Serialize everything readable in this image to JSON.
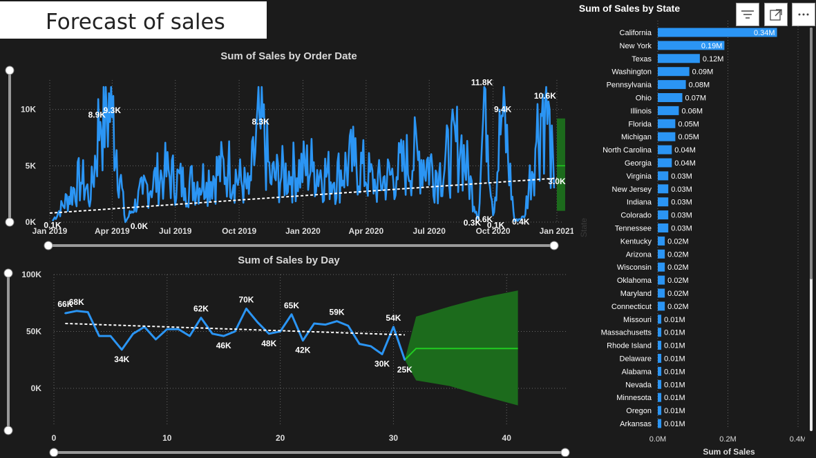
{
  "page": {
    "title": "Forecast of sales"
  },
  "icons": {
    "filter": "filter-icon",
    "focus": "focus-mode-icon",
    "more": "more-options-icon"
  },
  "colors": {
    "series": "#2b95f4",
    "forecast_band": "#1c6b1c",
    "forecast_line": "#22cc22",
    "trend": "#ffffff"
  },
  "chart_data": [
    {
      "type": "line",
      "title": "Sum of Sales by Order Date",
      "xlabel": "",
      "ylabel": "",
      "x_ticks": [
        "Jan 2019",
        "Apr 2019",
        "Jul 2019",
        "Oct 2019",
        "Jan 2020",
        "Apr 2020",
        "Jul 2020",
        "Oct 2020",
        "Jan 2021"
      ],
      "y_ticks": [
        "0K",
        "5K",
        "10K"
      ],
      "ylim": [
        0,
        12000
      ],
      "x_range": [
        "2019-01-01",
        "2021-01-10"
      ],
      "series": [
        {
          "x": [
            "2019-01-05",
            "2019-02-15",
            "2019-03-01",
            "2019-03-15",
            "2019-04-01",
            "2019-04-20",
            "2019-05-15",
            "2019-06-15",
            "2019-07-15",
            "2019-08-15",
            "2019-09-15",
            "2019-10-15",
            "2019-11-01",
            "2019-11-15",
            "2019-12-15",
            "2020-01-15",
            "2020-02-15",
            "2020-03-15",
            "2020-04-15",
            "2020-05-15",
            "2020-06-15",
            "2020-07-15",
            "2020-08-15",
            "2020-09-10",
            "2020-09-20",
            "2020-10-01",
            "2020-10-15",
            "2020-11-01",
            "2020-11-15",
            "2020-12-01",
            "2020-12-15",
            "2020-12-28"
          ],
          "values": [
            100,
            3500,
            2000,
            8900,
            9300,
            0,
            2500,
            4000,
            3000,
            3500,
            4500,
            2500,
            8300,
            3500,
            4000,
            4500,
            3500,
            5000,
            3000,
            4000,
            5500,
            4000,
            6500,
            300,
            11800,
            600,
            9400,
            100,
            400,
            6500,
            10600,
            3000
          ]
        }
      ],
      "trend": {
        "start": 800,
        "end": 3900
      },
      "forecast": {
        "low": 1000,
        "high": 9200
      },
      "data_labels": [
        {
          "x": "2019-01-05",
          "y": 100,
          "text": "0.1K"
        },
        {
          "x": "2019-03-10",
          "y": 8900,
          "text": "8.9K"
        },
        {
          "x": "2019-04-01",
          "y": 9300,
          "text": "9.3K"
        },
        {
          "x": "2019-05-10",
          "y": 0,
          "text": "0.0K"
        },
        {
          "x": "2019-11-01",
          "y": 8300,
          "text": "8.3K"
        },
        {
          "x": "2020-09-01",
          "y": 300,
          "text": "0.3K"
        },
        {
          "x": "2020-09-15",
          "y": 11800,
          "text": "11.8K"
        },
        {
          "x": "2020-09-18",
          "y": 600,
          "text": "0.6K"
        },
        {
          "x": "2020-10-05",
          "y": 100,
          "text": "0.1K"
        },
        {
          "x": "2020-10-15",
          "y": 9400,
          "text": "9.4K"
        },
        {
          "x": "2020-11-10",
          "y": 400,
          "text": "0.4K"
        },
        {
          "x": "2020-12-15",
          "y": 10600,
          "text": "10.6K"
        },
        {
          "x": "2021-01-01",
          "y": 3000,
          "text": "3.0K"
        }
      ]
    },
    {
      "type": "line",
      "title": "Sum of Sales by Day",
      "xlabel": "",
      "ylabel": "",
      "x_ticks": [
        "0",
        "10",
        "20",
        "30",
        "40"
      ],
      "y_ticks": [
        "0K",
        "50K",
        "100K"
      ],
      "xlim": [
        0,
        42
      ],
      "ylim": [
        -20000,
        100000
      ],
      "series": [
        {
          "x": [
            1,
            2,
            3,
            4,
            5,
            6,
            7,
            8,
            9,
            10,
            11,
            12,
            13,
            14,
            15,
            16,
            17,
            18,
            19,
            20,
            21,
            22,
            23,
            24,
            25,
            26,
            27,
            28,
            29,
            30,
            31
          ],
          "values": [
            66000,
            68000,
            67000,
            46000,
            46000,
            34000,
            48000,
            54000,
            43000,
            52000,
            52000,
            46000,
            62000,
            48000,
            46000,
            50000,
            70000,
            58000,
            48000,
            50000,
            65000,
            42000,
            57000,
            56000,
            59000,
            55000,
            39000,
            37000,
            30000,
            54000,
            25000
          ]
        }
      ],
      "trend": {
        "x": [
          1,
          31
        ],
        "values": [
          57000,
          47000
        ]
      },
      "forecast": {
        "x": [
          31,
          32,
          41
        ],
        "values": [
          25000,
          35000,
          35000
        ],
        "upper": [
          25000,
          63000,
          86000
        ],
        "lower": [
          25000,
          7000,
          -15000
        ]
      },
      "data_labels": [
        {
          "x": 1,
          "y": 66000,
          "text": "66K"
        },
        {
          "x": 2,
          "y": 68000,
          "text": "68K"
        },
        {
          "x": 6,
          "y": 34000,
          "text": "34K"
        },
        {
          "x": 13,
          "y": 62000,
          "text": "62K"
        },
        {
          "x": 15,
          "y": 46000,
          "text": "46K"
        },
        {
          "x": 17,
          "y": 70000,
          "text": "70K"
        },
        {
          "x": 19,
          "y": 48000,
          "text": "48K"
        },
        {
          "x": 21,
          "y": 65000,
          "text": "65K"
        },
        {
          "x": 22,
          "y": 42000,
          "text": "42K"
        },
        {
          "x": 25,
          "y": 59000,
          "text": "59K"
        },
        {
          "x": 29,
          "y": 30000,
          "text": "30K"
        },
        {
          "x": 30,
          "y": 54000,
          "text": "54K"
        },
        {
          "x": 31,
          "y": 25000,
          "text": "25K"
        }
      ]
    },
    {
      "type": "bar",
      "orientation": "horizontal",
      "title": "Sum of Sales by State",
      "xlabel": "Sum of Sales",
      "ylabel": "State",
      "x_ticks": [
        "0.0M",
        "0.2M",
        "0.4M"
      ],
      "xlim": [
        0,
        0.4
      ],
      "categories": [
        "California",
        "New York",
        "Texas",
        "Washington",
        "Pennsylvania",
        "Ohio",
        "Illinois",
        "Florida",
        "Michigan",
        "North Carolina",
        "Georgia",
        "Virginia",
        "New Jersey",
        "Indiana",
        "Colorado",
        "Tennessee",
        "Kentucky",
        "Arizona",
        "Wisconsin",
        "Oklahoma",
        "Maryland",
        "Connecticut",
        "Missouri",
        "Massachusetts",
        "Rhode Island",
        "Delaware",
        "Alabama",
        "Nevada",
        "Minnesota",
        "Oregon",
        "Arkansas"
      ],
      "values": [
        0.34,
        0.19,
        0.12,
        0.09,
        0.08,
        0.07,
        0.06,
        0.05,
        0.05,
        0.04,
        0.04,
        0.03,
        0.03,
        0.03,
        0.03,
        0.03,
        0.02,
        0.02,
        0.02,
        0.02,
        0.02,
        0.02,
        0.01,
        0.01,
        0.01,
        0.01,
        0.01,
        0.01,
        0.01,
        0.01,
        0.01
      ],
      "value_labels": [
        "0.34M",
        "0.19M",
        "0.12M",
        "0.09M",
        "0.08M",
        "0.07M",
        "0.06M",
        "0.05M",
        "0.05M",
        "0.04M",
        "0.04M",
        "0.03M",
        "0.03M",
        "0.03M",
        "0.03M",
        "0.03M",
        "0.02M",
        "0.02M",
        "0.02M",
        "0.02M",
        "0.02M",
        "0.02M",
        "0.01M",
        "0.01M",
        "0.01M",
        "0.01M",
        "0.01M",
        "0.01M",
        "0.01M",
        "0.01M",
        "0.01M"
      ]
    }
  ]
}
